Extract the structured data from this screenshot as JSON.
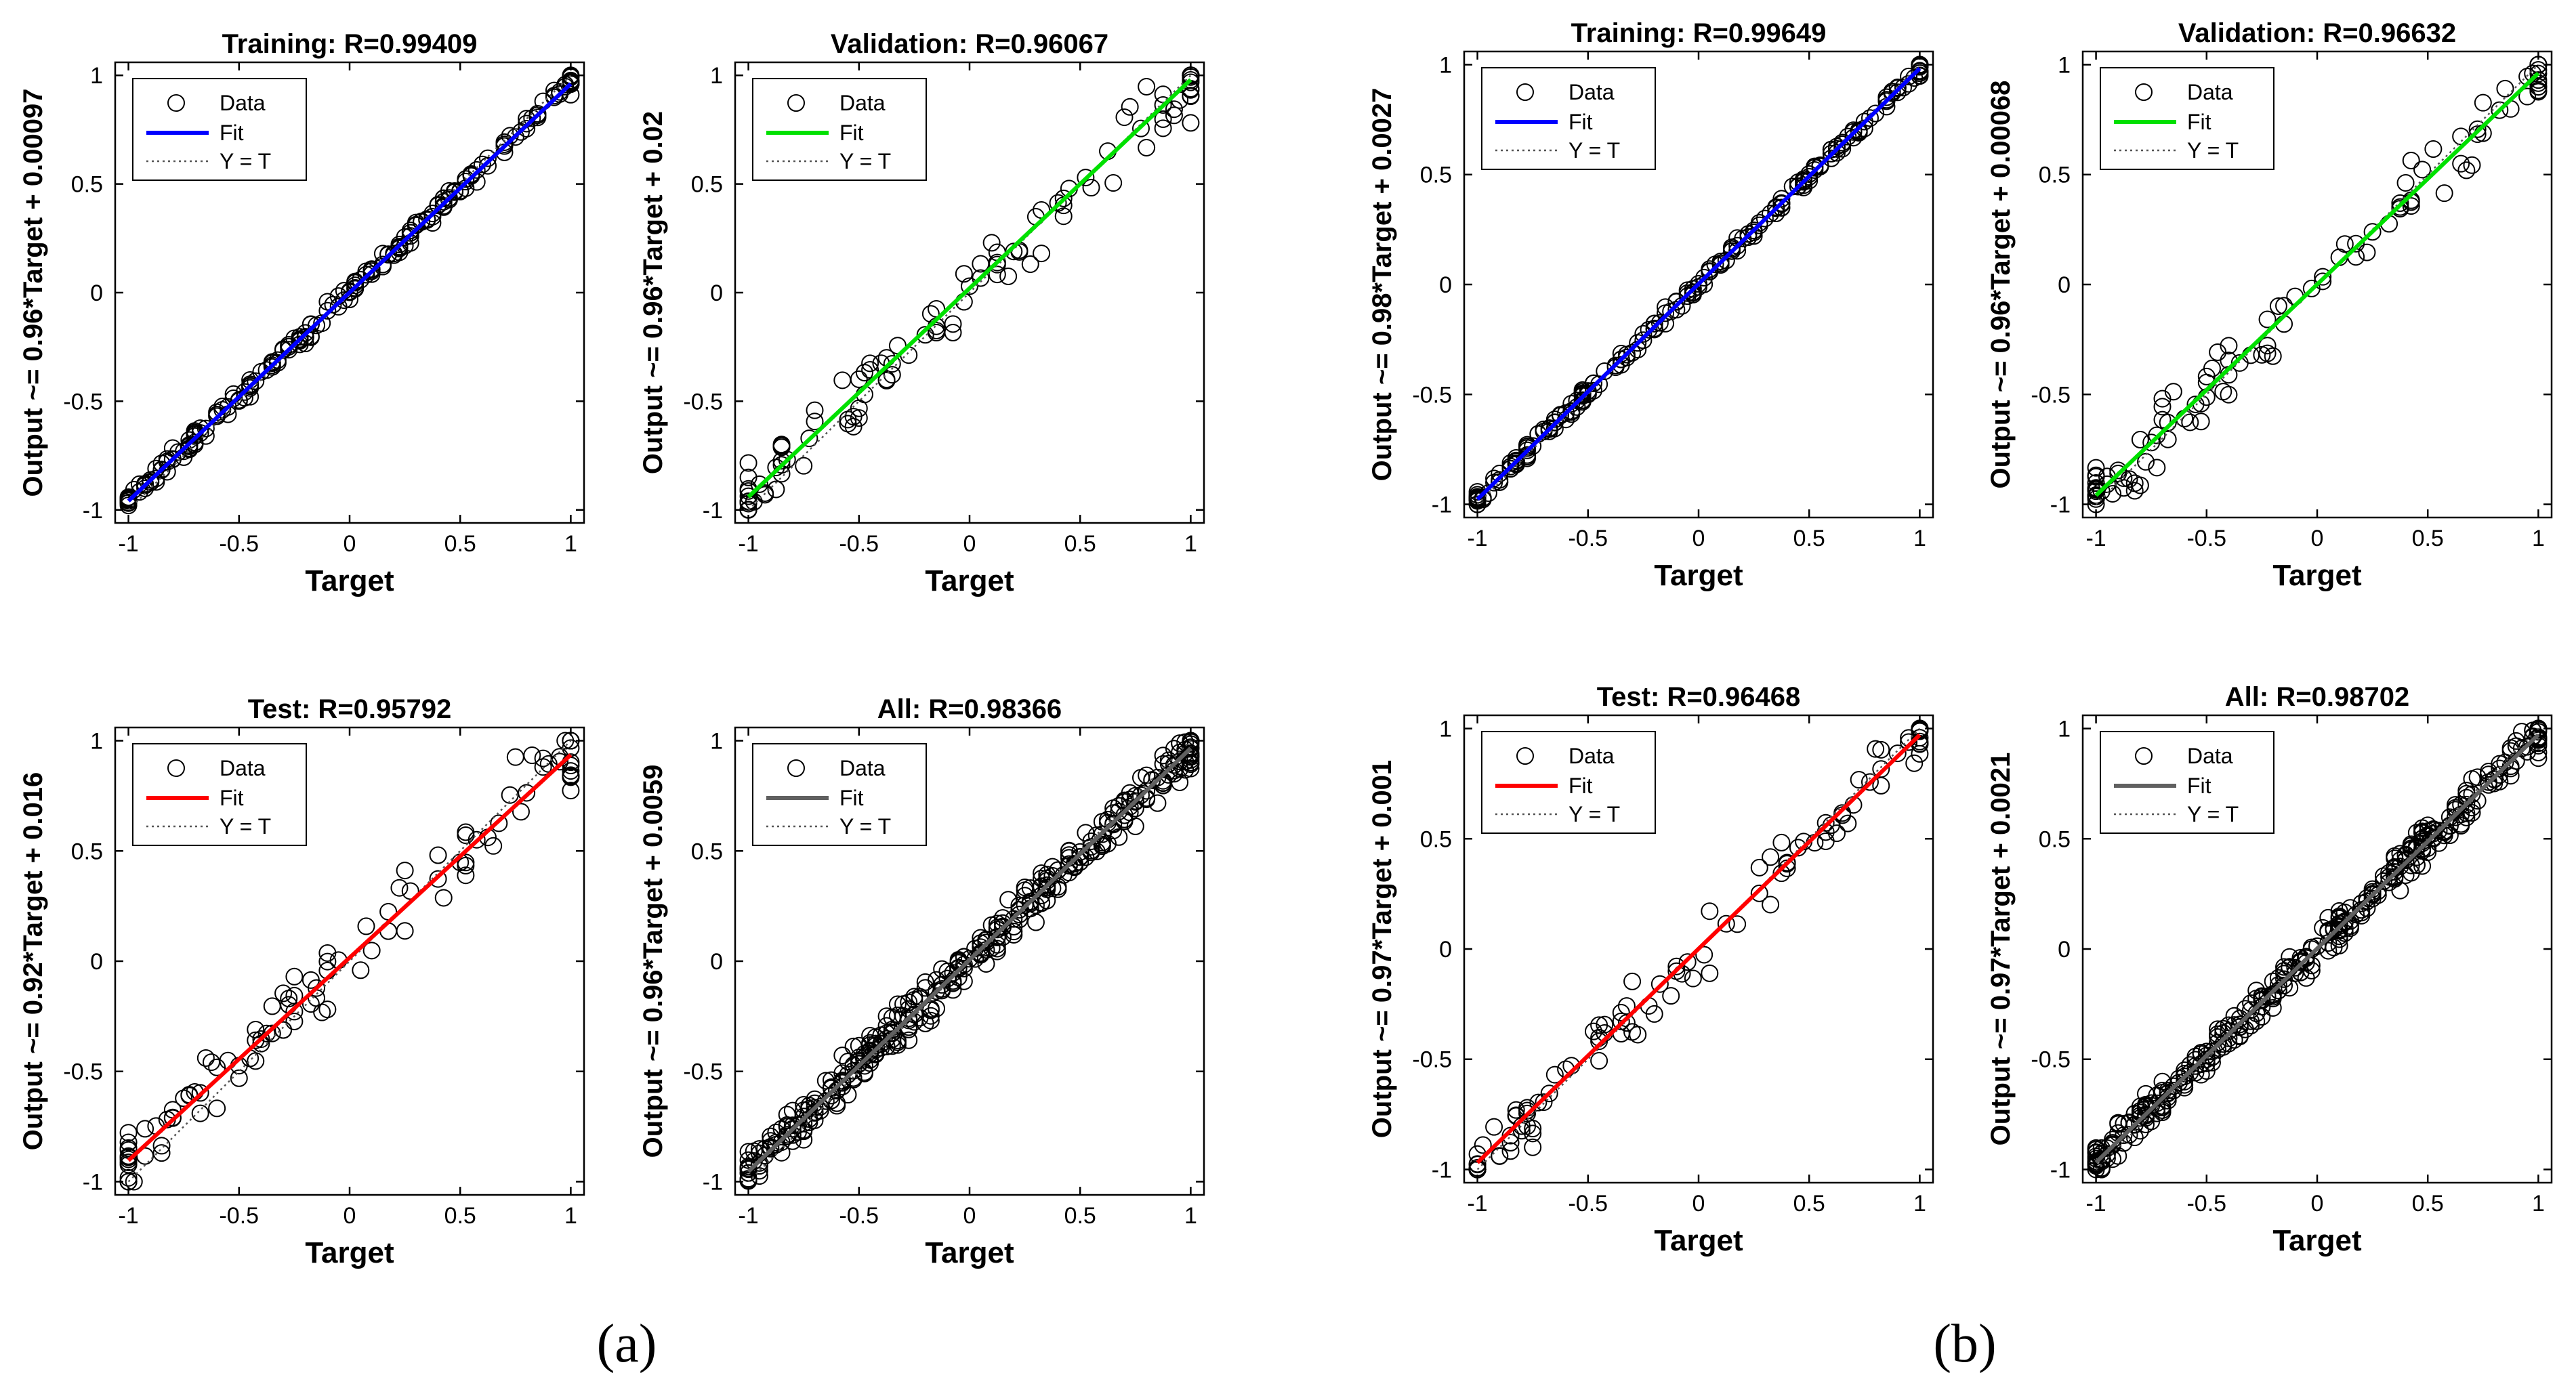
{
  "legend_labels": {
    "data": "Data",
    "fit": "Fit",
    "yt": "Y = T"
  },
  "axis_x_label": "Target",
  "captions": [
    "(a)",
    "(b)"
  ],
  "chart_data": [
    {
      "type": "scatter",
      "group": "a",
      "title": "Training: R=0.99409",
      "xlabel": "Target",
      "ylabel": "Output ~= 0.96*Target + 0.00097",
      "fit_color": "#0000ff",
      "fit": {
        "slope": 0.96,
        "intercept": 0.00097
      },
      "n": 220,
      "noise": 0.035,
      "xlim": [
        -1,
        1
      ],
      "ylim": [
        -1,
        1
      ],
      "xticks": [
        "-1",
        "-0.5",
        "0",
        "0.5",
        "1"
      ],
      "yticks": [
        "-1",
        "-0.5",
        "0",
        "0.5",
        "1"
      ],
      "seed": 11
    },
    {
      "type": "scatter",
      "group": "a",
      "title": "Validation: R=0.96067",
      "xlabel": "Target",
      "ylabel": "Output ~= 0.96*Target + 0.02",
      "fit_color": "#00e000",
      "fit": {
        "slope": 0.96,
        "intercept": 0.02
      },
      "n": 110,
      "noise": 0.13,
      "xlim": [
        -1,
        1
      ],
      "ylim": [
        -1,
        1
      ],
      "xticks": [
        "-1",
        "-0.5",
        "0",
        "0.5",
        "1"
      ],
      "yticks": [
        "-1",
        "-0.5",
        "0",
        "0.5",
        "1"
      ],
      "seed": 23
    },
    {
      "type": "scatter",
      "group": "a",
      "title": "Test: R=0.95792",
      "xlabel": "Target",
      "ylabel": "Output ~= 0.92*Target + 0.016",
      "fit_color": "#ff0000",
      "fit": {
        "slope": 0.92,
        "intercept": 0.016
      },
      "n": 110,
      "noise": 0.14,
      "xlim": [
        -1,
        1
      ],
      "ylim": [
        -1,
        1
      ],
      "xticks": [
        "-1",
        "-0.5",
        "0",
        "0.5",
        "1"
      ],
      "yticks": [
        "-1",
        "-0.5",
        "0",
        "0.5",
        "1"
      ],
      "seed": 37
    },
    {
      "type": "scatter",
      "group": "a",
      "title": "All: R=0.98366",
      "xlabel": "Target",
      "ylabel": "Output ~= 0.96*Target + 0.0059",
      "fit_color": "#606060",
      "fit": {
        "slope": 0.96,
        "intercept": 0.0059
      },
      "n": 360,
      "noise": 0.08,
      "xlim": [
        -1,
        1
      ],
      "ylim": [
        -1,
        1
      ],
      "xticks": [
        "-1",
        "-0.5",
        "0",
        "0.5",
        "1"
      ],
      "yticks": [
        "-1",
        "-0.5",
        "0",
        "0.5",
        "1"
      ],
      "seed": 41
    },
    {
      "type": "scatter",
      "group": "b",
      "title": "Training: R=0.99649",
      "xlabel": "Target",
      "ylabel": "Output ~= 0.98*Target + 0.0027",
      "fit_color": "#0000ff",
      "fit": {
        "slope": 0.98,
        "intercept": 0.0027
      },
      "n": 220,
      "noise": 0.03,
      "xlim": [
        -1,
        1
      ],
      "ylim": [
        -1,
        1
      ],
      "xticks": [
        "-1",
        "-0.5",
        "0",
        "0.5",
        "1"
      ],
      "yticks": [
        "-1",
        "-0.5",
        "0",
        "0.5",
        "1"
      ],
      "seed": 53
    },
    {
      "type": "scatter",
      "group": "b",
      "title": "Validation: R=0.96632",
      "xlabel": "Target",
      "ylabel": "Output ~= 0.96*Target + 0.00068",
      "fit_color": "#00e000",
      "fit": {
        "slope": 0.96,
        "intercept": 0.00068
      },
      "n": 110,
      "noise": 0.12,
      "xlim": [
        -1,
        1
      ],
      "ylim": [
        -1,
        1
      ],
      "xticks": [
        "-1",
        "-0.5",
        "0",
        "0.5",
        "1"
      ],
      "yticks": [
        "-1",
        "-0.5",
        "0",
        "0.5",
        "1"
      ],
      "seed": 67
    },
    {
      "type": "scatter",
      "group": "b",
      "title": "Test: R=0.96468",
      "xlabel": "Target",
      "ylabel": "Output ~= 0.97*Target + 0.001",
      "fit_color": "#ff0000",
      "fit": {
        "slope": 0.97,
        "intercept": 0.001
      },
      "n": 110,
      "noise": 0.12,
      "xlim": [
        -1,
        1
      ],
      "ylim": [
        -1,
        1
      ],
      "xticks": [
        "-1",
        "-0.5",
        "0",
        "0.5",
        "1"
      ],
      "yticks": [
        "-1",
        "-0.5",
        "0",
        "0.5",
        "1"
      ],
      "seed": 79
    },
    {
      "type": "scatter",
      "group": "b",
      "title": "All: R=0.98702",
      "xlabel": "Target",
      "ylabel": "Output ~= 0.97*Target + 0.0021",
      "fit_color": "#606060",
      "fit": {
        "slope": 0.97,
        "intercept": 0.0021
      },
      "n": 360,
      "noise": 0.07,
      "xlim": [
        -1,
        1
      ],
      "ylim": [
        -1,
        1
      ],
      "xticks": [
        "-1",
        "-0.5",
        "0",
        "0.5",
        "1"
      ],
      "yticks": [
        "-1",
        "-0.5",
        "0",
        "0.5",
        "1"
      ],
      "seed": 83
    }
  ]
}
